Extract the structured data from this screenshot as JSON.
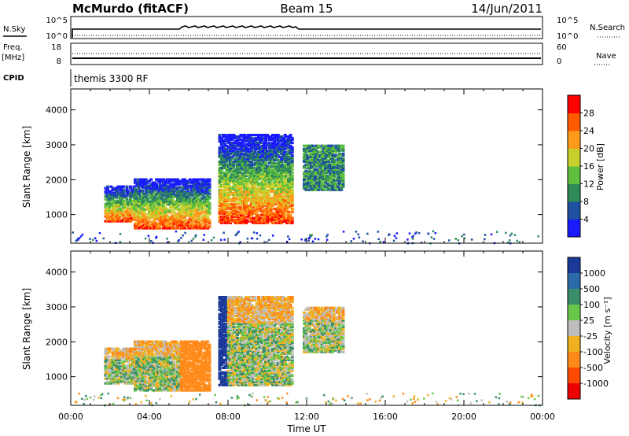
{
  "header": {
    "station": "McMurdo (fitACF)",
    "beam": "Beam 15",
    "date": "14/Jun/2011"
  },
  "aux": {
    "nsky_label": "N.Sky",
    "nsky_ticks": [
      "10^5",
      "10^0"
    ],
    "nsearch_label": "N.Search",
    "nsearch_ticks": [
      "10^5",
      "10^0"
    ],
    "freq_label": "Freq.",
    "freq_unit": "[MHz]",
    "freq_ticks": [
      "18",
      "8"
    ],
    "nave_label": "Nave",
    "nave_ticks": [
      "60",
      "0"
    ],
    "cpid_label": "CPID",
    "cpid_text": "themis 3300 RF"
  },
  "colors": {
    "power_scale": [
      "#1a1aff",
      "#1f4fa0",
      "#2e8b57",
      "#5fbf3f",
      "#c8cf2a",
      "#ff9b1a",
      "#ff5a00",
      "#ff0000"
    ],
    "velocity_scale": [
      "#1a3a9a",
      "#2b6aa8",
      "#3a8f6a",
      "#6ac64a",
      "#bdbdbd",
      "#f0b020",
      "#ff8a1a",
      "#ff4a00",
      "#ee0000"
    ]
  },
  "chart_data": [
    {
      "type": "heatmap",
      "title": "",
      "quantity": "Power",
      "ylabel": "Slant Range [km]",
      "xlabel": "Time UT",
      "x_range_hours": [
        0,
        24
      ],
      "ylim": [
        180,
        4600
      ],
      "y_ticks": [
        1000,
        2000,
        3000,
        4000
      ],
      "x_tick_labels": [
        "00:00",
        "04:00",
        "08:00",
        "12:00",
        "16:00",
        "20:00",
        "00:00"
      ],
      "colorbar": {
        "label": "Power [dB]",
        "range": [
          0,
          32
        ],
        "ticks": [
          4,
          8,
          12,
          16,
          20,
          24,
          28
        ]
      },
      "scatter_regions": [
        {
          "t_start": 1.7,
          "t_end": 3.2,
          "range_min": 800,
          "range_max": 1800
        },
        {
          "t_start": 3.2,
          "t_end": 7.0,
          "range_min": 600,
          "range_max": 2000
        },
        {
          "t_start": 7.5,
          "t_end": 11.2,
          "range_min": 750,
          "range_max": 3300
        },
        {
          "t_start": 11.8,
          "t_end": 13.8,
          "range_min": 1700,
          "range_max": 3000
        }
      ]
    },
    {
      "type": "heatmap",
      "title": "",
      "quantity": "Velocity",
      "ylabel": "Slant Range [km]",
      "xlabel": "Time UT",
      "x_range_hours": [
        0,
        24
      ],
      "ylim": [
        180,
        4600
      ],
      "y_ticks": [
        1000,
        2000,
        3000,
        4000
      ],
      "x_tick_labels": [
        "00:00",
        "04:00",
        "08:00",
        "12:00",
        "16:00",
        "20:00",
        "00:00"
      ],
      "colorbar": {
        "label": "Velocity [m s⁻¹]",
        "ticks": [
          "1000",
          "500",
          "100",
          "25",
          "-25",
          "-100",
          "-500",
          "-1000"
        ]
      },
      "scatter_regions": [
        {
          "t_start": 1.7,
          "t_end": 3.2,
          "range_min": 800,
          "range_max": 1800
        },
        {
          "t_start": 3.2,
          "t_end": 7.0,
          "range_min": 600,
          "range_max": 2000
        },
        {
          "t_start": 7.5,
          "t_end": 11.2,
          "range_min": 750,
          "range_max": 3300
        },
        {
          "t_start": 11.8,
          "t_end": 13.8,
          "range_min": 1700,
          "range_max": 3000
        }
      ]
    }
  ]
}
